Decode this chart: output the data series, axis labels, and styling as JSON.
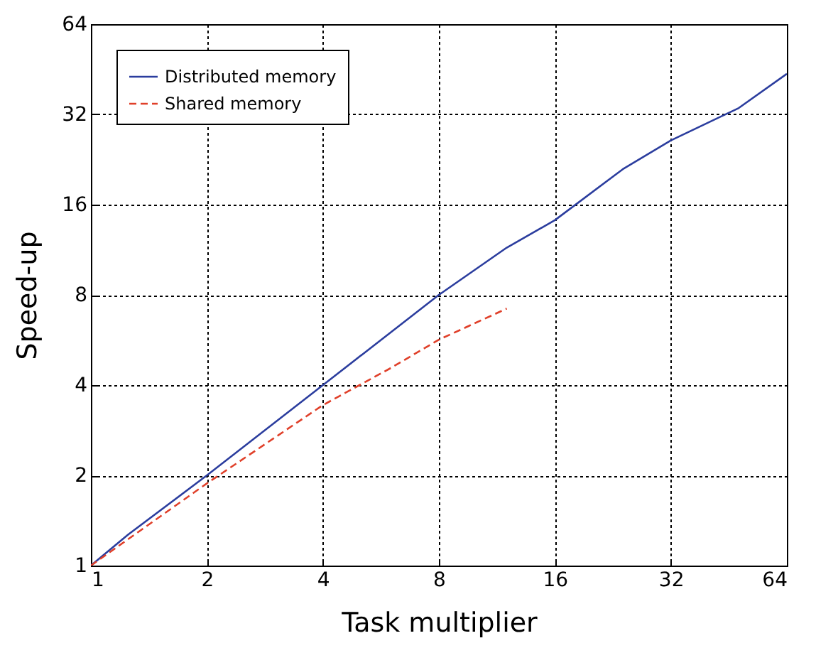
{
  "chart_data": {
    "type": "line",
    "xlabel": "Task multiplier",
    "ylabel": "Speed-up",
    "log": "xy",
    "xlim": [
      1,
      64
    ],
    "ylim": [
      1,
      64
    ],
    "xticks": [
      1,
      2,
      4,
      8,
      16,
      32,
      64
    ],
    "yticks": [
      1,
      2,
      4,
      8,
      16,
      32,
      64
    ],
    "grid": true,
    "legend": "top left",
    "series": [
      {
        "name": "Distributed memory",
        "color": "#2b3d9e",
        "line_style": "solid",
        "x": [
          1,
          1.25,
          2,
          4,
          8,
          12,
          16,
          24,
          32,
          48,
          64
        ],
        "values": [
          1,
          1.27,
          2,
          4,
          8,
          11.5,
          14.2,
          21,
          26.2,
          33.6,
          43.7
        ]
      },
      {
        "name": "Shared memory",
        "color": "#e0402a",
        "line_style": "dashed",
        "x": [
          1,
          2,
          4,
          6,
          8,
          12
        ],
        "values": [
          1,
          1.88,
          3.43,
          4.56,
          5.67,
          7.2
        ]
      }
    ]
  }
}
